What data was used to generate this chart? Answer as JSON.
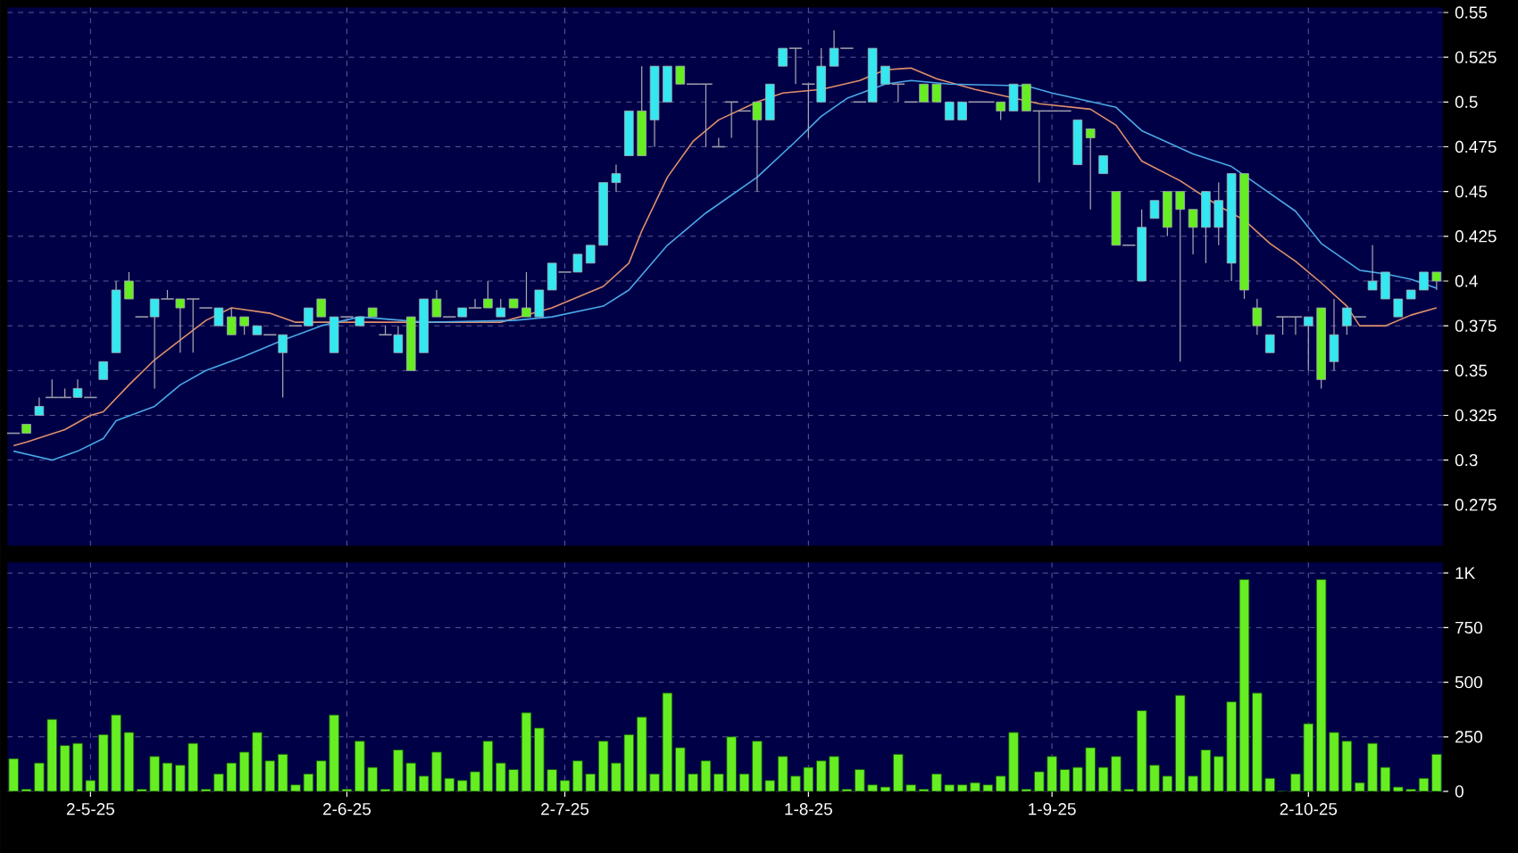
{
  "chart_data": [
    {
      "type": "candlestick",
      "categories": [
        null,
        null,
        null,
        null,
        null,
        null,
        null,
        null,
        null,
        null,
        null,
        null,
        null,
        null,
        null,
        null,
        null,
        null,
        null,
        null,
        null,
        null,
        null,
        null,
        null,
        null,
        null,
        null,
        null,
        null,
        null,
        null,
        null,
        null,
        null,
        null,
        null,
        null,
        null,
        null,
        null,
        null,
        null,
        null,
        null,
        null,
        null,
        null,
        null,
        null,
        null,
        null,
        null,
        null,
        null,
        null,
        null,
        null,
        null,
        null,
        null,
        null,
        null,
        null,
        null,
        null,
        null,
        null,
        null,
        null,
        null,
        null,
        null,
        null,
        null,
        null,
        null,
        null,
        null,
        null,
        null,
        null,
        null,
        null,
        null,
        null,
        null,
        null,
        null,
        null,
        null,
        null,
        null,
        null,
        null,
        null,
        null,
        null,
        null,
        null,
        null,
        null,
        null,
        null,
        null,
        null,
        null,
        null,
        null,
        null,
        null,
        null
      ],
      "ohlc": [
        [
          0.315,
          0.315,
          0.315,
          0.315
        ],
        [
          0.32,
          0.32,
          0.315,
          0.315
        ],
        [
          0.325,
          0.335,
          0.325,
          0.33
        ],
        [
          0.335,
          0.345,
          0.335,
          0.335
        ],
        [
          0.335,
          0.34,
          0.335,
          0.335
        ],
        [
          0.335,
          0.345,
          0.335,
          0.34
        ],
        [
          0.335,
          0.335,
          0.335,
          0.335
        ],
        [
          0.345,
          0.355,
          0.345,
          0.355
        ],
        [
          0.36,
          0.4,
          0.36,
          0.395
        ],
        [
          0.4,
          0.405,
          0.39,
          0.39
        ],
        [
          0.38,
          0.38,
          0.38,
          0.38
        ],
        [
          0.38,
          0.39,
          0.34,
          0.39
        ],
        [
          0.39,
          0.395,
          0.39,
          0.39
        ],
        [
          0.39,
          0.39,
          0.36,
          0.385
        ],
        [
          0.39,
          0.39,
          0.36,
          0.39
        ],
        [
          0.385,
          0.385,
          0.385,
          0.385
        ],
        [
          0.375,
          0.385,
          0.375,
          0.385
        ],
        [
          0.38,
          0.385,
          0.37,
          0.37
        ],
        [
          0.38,
          0.38,
          0.37,
          0.375
        ],
        [
          0.37,
          0.375,
          0.37,
          0.375
        ],
        [
          0.37,
          0.37,
          0.37,
          0.37
        ],
        [
          0.36,
          0.37,
          0.335,
          0.37
        ],
        [
          0.375,
          0.375,
          0.375,
          0.375
        ],
        [
          0.375,
          0.385,
          0.375,
          0.385
        ],
        [
          0.39,
          0.39,
          0.38,
          0.38
        ],
        [
          0.36,
          0.38,
          0.36,
          0.38
        ],
        [
          0.38,
          0.38,
          0.38,
          0.38
        ],
        [
          0.375,
          0.38,
          0.375,
          0.38
        ],
        [
          0.385,
          0.385,
          0.38,
          0.38
        ],
        [
          0.37,
          0.375,
          0.37,
          0.37
        ],
        [
          0.36,
          0.375,
          0.36,
          0.37
        ],
        [
          0.38,
          0.38,
          0.35,
          0.35
        ],
        [
          0.36,
          0.39,
          0.36,
          0.39
        ],
        [
          0.39,
          0.395,
          0.38,
          0.38
        ],
        [
          0.38,
          0.38,
          0.38,
          0.38
        ],
        [
          0.38,
          0.385,
          0.38,
          0.385
        ],
        [
          0.385,
          0.39,
          0.385,
          0.385
        ],
        [
          0.39,
          0.4,
          0.385,
          0.385
        ],
        [
          0.38,
          0.39,
          0.38,
          0.385
        ],
        [
          0.39,
          0.39,
          0.385,
          0.385
        ],
        [
          0.385,
          0.405,
          0.38,
          0.38
        ],
        [
          0.38,
          0.395,
          0.38,
          0.395
        ],
        [
          0.395,
          0.41,
          0.395,
          0.41
        ],
        [
          0.405,
          0.405,
          0.405,
          0.405
        ],
        [
          0.405,
          0.415,
          0.405,
          0.415
        ],
        [
          0.41,
          0.42,
          0.41,
          0.42
        ],
        [
          0.42,
          0.455,
          0.42,
          0.455
        ],
        [
          0.455,
          0.465,
          0.45,
          0.46
        ],
        [
          0.47,
          0.495,
          0.47,
          0.495
        ],
        [
          0.495,
          0.52,
          0.47,
          0.47
        ],
        [
          0.49,
          0.52,
          0.475,
          0.52
        ],
        [
          0.5,
          0.52,
          0.5,
          0.52
        ],
        [
          0.52,
          0.52,
          0.51,
          0.51
        ],
        [
          0.51,
          0.51,
          0.51,
          0.51
        ],
        [
          0.51,
          0.51,
          0.475,
          0.51
        ],
        [
          0.475,
          0.48,
          0.475,
          0.475
        ],
        [
          0.5,
          0.5,
          0.48,
          0.5
        ],
        [
          0.495,
          0.495,
          0.495,
          0.495
        ],
        [
          0.5,
          0.5,
          0.45,
          0.49
        ],
        [
          0.49,
          0.51,
          0.49,
          0.51
        ],
        [
          0.52,
          0.53,
          0.52,
          0.53
        ],
        [
          0.53,
          0.53,
          0.51,
          0.53
        ],
        [
          0.51,
          0.51,
          0.48,
          0.51
        ],
        [
          0.5,
          0.53,
          0.5,
          0.52
        ],
        [
          0.52,
          0.54,
          0.52,
          0.53
        ],
        [
          0.53,
          0.53,
          0.53,
          0.53
        ],
        [
          0.5,
          0.5,
          0.5,
          0.5
        ],
        [
          0.5,
          0.53,
          0.5,
          0.53
        ],
        [
          0.51,
          0.52,
          0.51,
          0.52
        ],
        [
          0.51,
          0.51,
          0.5,
          0.51
        ],
        [
          0.5,
          0.5,
          0.5,
          0.5
        ],
        [
          0.51,
          0.51,
          0.5,
          0.5
        ],
        [
          0.51,
          0.51,
          0.5,
          0.5
        ],
        [
          0.49,
          0.5,
          0.49,
          0.5
        ],
        [
          0.49,
          0.5,
          0.49,
          0.5
        ],
        [
          0.5,
          0.5,
          0.5,
          0.5
        ],
        [
          0.5,
          0.5,
          0.5,
          0.5
        ],
        [
          0.5,
          0.5,
          0.49,
          0.495
        ],
        [
          0.495,
          0.51,
          0.495,
          0.51
        ],
        [
          0.51,
          0.51,
          0.495,
          0.495
        ],
        [
          0.495,
          0.495,
          0.455,
          0.495
        ],
        [
          0.495,
          0.495,
          0.495,
          0.495
        ],
        [
          0.495,
          0.495,
          0.495,
          0.495
        ],
        [
          0.465,
          0.49,
          0.465,
          0.49
        ],
        [
          0.485,
          0.485,
          0.44,
          0.48
        ],
        [
          0.46,
          0.47,
          0.46,
          0.47
        ],
        [
          0.45,
          0.45,
          0.42,
          0.42
        ],
        [
          0.42,
          0.42,
          0.42,
          0.42
        ],
        [
          0.4,
          0.44,
          0.4,
          0.43
        ],
        [
          0.435,
          0.445,
          0.435,
          0.445
        ],
        [
          0.45,
          0.45,
          0.425,
          0.43
        ],
        [
          0.45,
          0.45,
          0.355,
          0.44
        ],
        [
          0.44,
          0.44,
          0.415,
          0.43
        ],
        [
          0.43,
          0.45,
          0.41,
          0.45
        ],
        [
          0.43,
          0.455,
          0.42,
          0.445
        ],
        [
          0.41,
          0.46,
          0.4,
          0.46
        ],
        [
          0.46,
          0.46,
          0.39,
          0.395
        ],
        [
          0.385,
          0.39,
          0.37,
          0.375
        ],
        [
          0.36,
          0.37,
          0.36,
          0.37
        ],
        [
          0.38,
          0.38,
          0.37,
          0.38
        ],
        [
          0.38,
          0.38,
          0.37,
          0.38
        ],
        [
          0.375,
          0.38,
          0.35,
          0.38
        ],
        [
          0.385,
          0.385,
          0.34,
          0.345
        ],
        [
          0.355,
          0.39,
          0.35,
          0.37
        ],
        [
          0.375,
          0.385,
          0.37,
          0.385
        ],
        [
          0.38,
          0.38,
          0.38,
          0.38
        ],
        [
          0.395,
          0.42,
          0.395,
          0.4
        ],
        [
          0.39,
          0.405,
          0.39,
          0.405
        ],
        [
          0.38,
          0.39,
          0.38,
          0.39
        ],
        [
          0.39,
          0.395,
          0.39,
          0.395
        ],
        [
          0.395,
          0.405,
          0.395,
          0.405
        ],
        [
          0.405,
          0.405,
          0.395,
          0.4
        ]
      ],
      "colors": [
        "#9a9aa8",
        "#66ee22",
        "#33e8f0",
        "#9a9aa8",
        "#9a9aa8",
        "#33e8f0",
        "#9a9aa8",
        "#33e8f0",
        "#33e8f0",
        "#66ee22",
        "#9a9aa8",
        "#33e8f0",
        "#9a9aa8",
        "#66ee22",
        "#9a9aa8",
        "#9a9aa8",
        "#33e8f0",
        "#66ee22",
        "#66ee22",
        "#33e8f0",
        "#9a9aa8",
        "#33e8f0",
        "#9a9aa8",
        "#33e8f0",
        "#66ee22",
        "#33e8f0",
        "#9a9aa8",
        "#33e8f0",
        "#66ee22",
        "#9a9aa8",
        "#33e8f0",
        "#66ee22",
        "#33e8f0",
        "#66ee22",
        "#9a9aa8",
        "#33e8f0",
        "#9a9aa8",
        "#66ee22",
        "#33e8f0",
        "#66ee22",
        "#66ee22",
        "#33e8f0",
        "#33e8f0",
        "#9a9aa8",
        "#33e8f0",
        "#33e8f0",
        "#33e8f0",
        "#33e8f0",
        "#33e8f0",
        "#66ee22",
        "#33e8f0",
        "#33e8f0",
        "#66ee22",
        "#9a9aa8",
        "#9a9aa8",
        "#9a9aa8",
        "#9a9aa8",
        "#9a9aa8",
        "#66ee22",
        "#33e8f0",
        "#33e8f0",
        "#9a9aa8",
        "#9a9aa8",
        "#33e8f0",
        "#33e8f0",
        "#9a9aa8",
        "#9a9aa8",
        "#33e8f0",
        "#33e8f0",
        "#9a9aa8",
        "#9a9aa8",
        "#66ee22",
        "#66ee22",
        "#33e8f0",
        "#33e8f0",
        "#9a9aa8",
        "#9a9aa8",
        "#66ee22",
        "#33e8f0",
        "#66ee22",
        "#9a9aa8",
        "#9a9aa8",
        "#9a9aa8",
        "#33e8f0",
        "#66ee22",
        "#33e8f0",
        "#66ee22",
        "#9a9aa8",
        "#33e8f0",
        "#33e8f0",
        "#66ee22",
        "#66ee22",
        "#66ee22",
        "#33e8f0",
        "#33e8f0",
        "#33e8f0",
        "#66ee22",
        "#66ee22",
        "#33e8f0",
        "#9a9aa8",
        "#9a9aa8",
        "#33e8f0",
        "#66ee22",
        "#33e8f0",
        "#33e8f0",
        "#9a9aa8",
        "#33e8f0",
        "#33e8f0",
        "#33e8f0",
        "#33e8f0",
        "#33e8f0",
        "#66ee22"
      ],
      "series": [
        {
          "type": "line",
          "color": "#e0906a",
          "values": [
            0.308,
            0.31,
            null,
            null,
            0.317,
            null,
            0.325,
            0.327,
            null,
            0.342,
            null,
            0.356,
            null,
            0.367,
            null,
            0.378,
            null,
            0.385,
            null,
            null,
            0.382,
            null,
            0.377,
            null,
            null,
            null,
            null,
            null,
            null,
            null,
            0.377,
            null,
            null,
            null,
            null,
            null,
            null,
            null,
            0.377,
            null,
            null,
            null,
            0.385,
            null,
            null,
            null,
            0.397,
            null,
            0.41,
            0.428,
            null,
            0.458,
            null,
            0.478,
            null,
            0.49,
            null,
            null,
            0.5,
            null,
            0.505,
            null,
            null,
            0.507,
            null,
            null,
            0.512,
            null,
            0.518,
            null,
            0.519,
            null,
            0.513,
            null,
            null,
            0.507,
            null,
            null,
            null,
            null,
            0.499,
            null,
            null,
            null,
            0.496,
            null,
            0.487,
            null,
            0.467,
            null,
            null,
            0.456,
            null,
            null,
            0.442,
            null,
            0.434,
            null,
            0.421,
            null,
            0.411,
            null,
            0.399,
            null,
            0.386,
            0.375,
            null,
            0.375,
            null,
            0.381,
            null,
            0.385
          ]
        },
        {
          "type": "line",
          "color": "#4aa8e8",
          "values": [
            0.305,
            null,
            null,
            0.3,
            null,
            0.305,
            null,
            0.312,
            0.322,
            null,
            null,
            0.33,
            null,
            0.342,
            null,
            0.35,
            null,
            null,
            0.358,
            null,
            null,
            0.367,
            null,
            null,
            0.375,
            null,
            null,
            0.38,
            null,
            null,
            null,
            null,
            0.377,
            null,
            null,
            null,
            null,
            null,
            null,
            0.378,
            null,
            null,
            0.38,
            null,
            null,
            null,
            0.386,
            null,
            0.395,
            null,
            null,
            0.42,
            null,
            null,
            0.438,
            null,
            null,
            null,
            0.458,
            null,
            null,
            0.478,
            null,
            0.492,
            null,
            0.502,
            null,
            null,
            0.51,
            null,
            0.512,
            null,
            null,
            0.51,
            null,
            null,
            null,
            null,
            null,
            0.509,
            null,
            0.505,
            null,
            null,
            null,
            null,
            0.497,
            null,
            0.484,
            null,
            null,
            null,
            0.471,
            null,
            null,
            0.464,
            null,
            0.454,
            null,
            null,
            0.439,
            null,
            0.421,
            null,
            0.411,
            0.406,
            null,
            0.404,
            null,
            0.401,
            null,
            0.396
          ]
        }
      ],
      "ylim": [
        0.252,
        0.553
      ],
      "yticks": [
        0.275,
        0.3,
        0.325,
        0.35,
        0.375,
        0.4,
        0.425,
        0.45,
        0.475,
        0.5,
        0.525,
        0.55
      ],
      "grid": true,
      "tick_labels": "y"
    },
    {
      "type": "bar",
      "categories": [
        null,
        null,
        null,
        null,
        null,
        null,
        "2-5-25",
        null,
        null,
        null,
        null,
        null,
        null,
        null,
        null,
        null,
        null,
        null,
        null,
        null,
        null,
        null,
        null,
        null,
        null,
        null,
        "2-6-25",
        null,
        null,
        null,
        null,
        null,
        null,
        null,
        null,
        null,
        null,
        null,
        null,
        null,
        null,
        null,
        null,
        "2-7-25",
        null,
        null,
        null,
        null,
        null,
        null,
        null,
        null,
        null,
        null,
        null,
        null,
        null,
        null,
        null,
        null,
        null,
        null,
        "1-8-25",
        null,
        null,
        null,
        null,
        null,
        null,
        null,
        null,
        null,
        null,
        null,
        null,
        null,
        null,
        null,
        null,
        null,
        null,
        "1-9-25",
        null,
        null,
        null,
        null,
        null,
        null,
        null,
        null,
        null,
        null,
        null,
        null,
        null,
        null,
        null,
        null,
        null,
        null,
        null,
        "2-10-25",
        null,
        null,
        null,
        null,
        null,
        null,
        null,
        null,
        null,
        null
      ],
      "values": [
        150,
        10,
        130,
        330,
        210,
        220,
        50,
        260,
        350,
        270,
        10,
        160,
        130,
        120,
        220,
        10,
        80,
        130,
        180,
        270,
        140,
        170,
        30,
        80,
        140,
        350,
        10,
        230,
        110,
        10,
        190,
        130,
        70,
        180,
        60,
        50,
        90,
        230,
        130,
        100,
        360,
        290,
        100,
        50,
        140,
        80,
        230,
        130,
        260,
        340,
        80,
        450,
        200,
        80,
        140,
        80,
        250,
        80,
        230,
        50,
        160,
        70,
        110,
        140,
        160,
        10,
        100,
        30,
        20,
        170,
        30,
        10,
        80,
        30,
        30,
        40,
        30,
        70,
        270,
        10,
        90,
        160,
        100,
        110,
        200,
        110,
        160,
        10,
        370,
        120,
        70,
        440,
        70,
        190,
        160,
        410,
        970,
        450,
        60,
        0,
        80,
        310,
        970,
        270,
        230,
        40,
        220,
        110,
        20,
        10,
        60,
        170
      ],
      "color": "#66ee22",
      "ylim": [
        0,
        1050
      ],
      "yticks": [
        0,
        250,
        500,
        750,
        {
          "value": 1000,
          "label": "1K"
        }
      ],
      "grid": true
    }
  ]
}
